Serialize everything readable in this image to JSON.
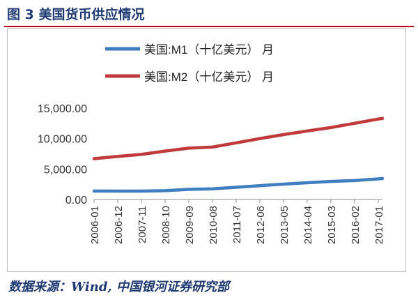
{
  "figure": {
    "title": "图 3 美国货币供应情况",
    "source": "数据来源：Wind, 中国银河证券研究部"
  },
  "colors": {
    "title": "#1f3a73",
    "divider": "#b5001b",
    "m1": "#3f7fc1",
    "m2": "#c0393b"
  },
  "chart_data": {
    "type": "line",
    "title": "",
    "xlabel": "",
    "ylabel": "",
    "ylim": [
      0,
      15000
    ],
    "yticks": [
      "15,000.00",
      "10,000.00",
      "5,000.00",
      "0.00"
    ],
    "ytick_values": [
      15000,
      10000,
      5000,
      0
    ],
    "grid": false,
    "legend_position": "top",
    "x_tick_labels": [
      "2006-01",
      "2006-12",
      "2007-11",
      "2008-10",
      "2009-09",
      "2010-08",
      "2011-07",
      "2012-06",
      "2013-05",
      "2014-04",
      "2015-03",
      "2016-02",
      "2017-01"
    ],
    "x": [
      "2006-01",
      "2006-12",
      "2007-11",
      "2008-10",
      "2009-09",
      "2010-08",
      "2011-07",
      "2012-06",
      "2013-05",
      "2014-04",
      "2015-03",
      "2016-02",
      "2017-01",
      "2017-03"
    ],
    "series": [
      {
        "name": "美国:M1（十亿美元） 月",
        "values": [
          1380,
          1370,
          1370,
          1440,
          1660,
          1740,
          2000,
          2270,
          2520,
          2750,
          2960,
          3100,
          3380,
          3430
        ]
      },
      {
        "name": "美国:M2（十亿美元） 月",
        "values": [
          6700,
          7080,
          7400,
          7950,
          8430,
          8600,
          9300,
          10000,
          10650,
          11250,
          11800,
          12500,
          13200,
          13300
        ]
      }
    ]
  }
}
